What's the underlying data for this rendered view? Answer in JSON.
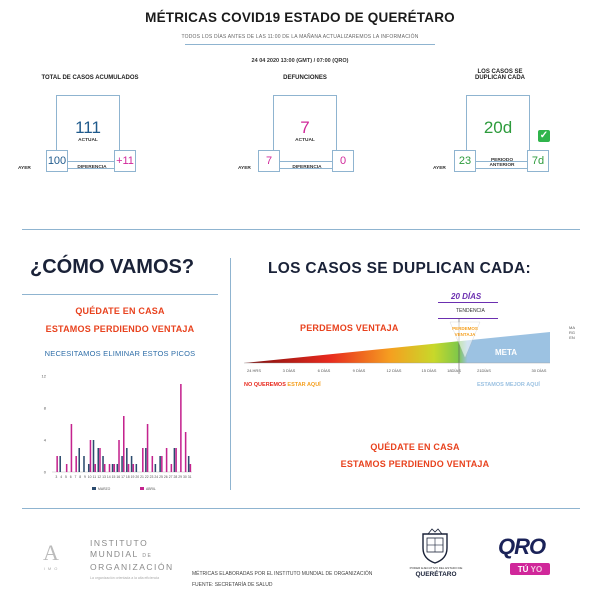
{
  "header": {
    "title": "MÉTRICAS COVID19 ESTADO DE QUERÉTARO",
    "subtitle": "TODOS LOS DÍAS ANTES DE LAS 11:00 DE LA MAÑANA ACTUALIZAREMOS LA INFORMACIÓN",
    "date": "24 04 2020  13:00 (GMT) / 07:00 (QRO)"
  },
  "metrics": {
    "cases": {
      "label": "TOTAL DE CASOS ACUMULADOS",
      "value": "111",
      "value_label": "ACTUAL",
      "yesterday_label": "AYER",
      "yesterday": "100",
      "diff_label": "DIFERENCIA",
      "diff": "+11"
    },
    "deaths": {
      "label": "DEFUNCIONES",
      "value": "7",
      "value_label": "ACTUAL",
      "yesterday_label": "AYER",
      "yesterday": "7",
      "diff_label": "DIFERENCIA",
      "diff": "0"
    },
    "doubling": {
      "label_line1": "LOS CASOS SE",
      "label_line2": "DUPLICAN CADA",
      "value": "20d",
      "yesterday_label": "AYER",
      "yesterday": "23",
      "prev_label_line1": "PERIODO",
      "prev_label_line2": "ANTERIOR",
      "prev": "7d",
      "check": "✓"
    }
  },
  "colors": {
    "blue_value": "#1f5a8c",
    "magenta": "#d0279a",
    "green": "#2d9b3c",
    "orange": "#e8421e",
    "line": "#8fb4d0",
    "meta": "#9cc2e2"
  },
  "como_vamos": {
    "title": "¿CÓMO VAMOS?",
    "line1": "QUÉDATE EN CASA",
    "line2": "ESTAMOS PERDIENDO VENTAJA",
    "peaks_note": "NECESITAMOS ELIMINAR ESTOS PICOS"
  },
  "chart_data": {
    "type": "bar",
    "yticks": [
      "12",
      "8",
      "4",
      "0"
    ],
    "ylim": [
      0,
      12
    ],
    "categories": [
      "3",
      "4",
      "5",
      "6",
      "7",
      "8",
      "9",
      "10",
      "11",
      "12",
      "13",
      "14",
      "15",
      "16",
      "17",
      "18",
      "19",
      "20",
      "21",
      "22",
      "23",
      "24",
      "25",
      "26",
      "27",
      "28",
      "29",
      "30",
      "31"
    ],
    "series": [
      {
        "name": "MARZO",
        "color": "#2b4b6e",
        "values": [
          0,
          2,
          0,
          0,
          0,
          3,
          2,
          1,
          4,
          3,
          2,
          0,
          1,
          1,
          2,
          3,
          2,
          1,
          0,
          3,
          0,
          1,
          2,
          0,
          0,
          3,
          0,
          0,
          2
        ]
      },
      {
        "name": "ABRIL",
        "color": "#c4238e",
        "values": [
          2,
          0,
          1,
          6,
          2,
          0,
          0,
          4,
          1,
          3,
          1,
          1,
          1,
          4,
          7,
          1,
          1,
          0,
          3,
          6,
          2,
          0,
          2,
          3,
          1,
          3,
          11,
          5,
          1
        ]
      }
    ],
    "legend": [
      "MARZO",
      "ABRIL"
    ],
    "legend_position": "bottom"
  },
  "doubling_section": {
    "title": "LOS CASOS SE DUPLICAN CADA:",
    "value": "20 DÍAS",
    "trend_label": "TENDENCIA",
    "perdemos": "PERDEMOS VENTAJA",
    "badge_line1": "PERDEMOS",
    "badge_line2": "VENTAJA",
    "meta": "META",
    "side_label": "MARGEN",
    "axis": [
      "24 HRS",
      "3 DÍAS",
      "6 DÍAS",
      "9 DÍAS",
      "12 DÍAS",
      "15 DÍAS",
      "18DÍAS",
      "21DÍAS",
      "30 DÍAS"
    ],
    "left_note_red": "NO QUEREMOS",
    "left_note_orange": "ESTAR AQUÍ",
    "right_note": "ESTAMOS MEJOR AQUÍ",
    "bottom_line1": "QUÉDATE EN CASA",
    "bottom_line2": "ESTAMOS PERDIENDO VENTAJA"
  },
  "footer": {
    "org_line1": "INSTITUTO",
    "org_line2": "MUNDIAL",
    "org_de": "DE",
    "org_line3": "ORGANIZACIÓN",
    "org_tagline": "La organización orientada a la alta eficiencia",
    "org_letter": "A",
    "org_sub": "I M O",
    "source1": "MÉTRICAS ELABORADAS POR EL INSTITUTO MUNDIAL DE ORGANIZACIÓN",
    "source2": "FUENTE: SECRETARÍA DE SALUD",
    "gov_small": "PODER EJECUTIVO DEL ESTADO DE",
    "gov": "QUERÉTARO",
    "qro": "QRO",
    "tu": "TÚ",
    "yo": "YO"
  }
}
